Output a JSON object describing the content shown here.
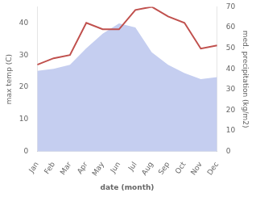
{
  "chart_data": {
    "type": "line",
    "categories": [
      "Jan",
      "Feb",
      "Mar",
      "Apr",
      "May",
      "Jun",
      "Jul",
      "Aug",
      "Sep",
      "Oct",
      "Nov",
      "Dec"
    ],
    "xlabel": "date (month)",
    "ylabel": "max temp (C)",
    "y2label": "med. precipitation (kg/m2)",
    "series": [
      {
        "type": "line",
        "color": "#c0504d",
        "values": [
          27,
          29,
          30,
          40,
          38,
          38,
          44,
          45,
          42,
          40,
          32,
          33
        ]
      },
      {
        "type": "area",
        "color": "#c5cef0",
        "axis": "y2",
        "values": [
          39,
          40,
          42,
          50,
          57,
          62,
          60,
          48,
          42,
          38,
          35,
          36
        ]
      }
    ],
    "ylim": [
      0,
      45
    ],
    "yticks": [
      0,
      10,
      20,
      30,
      40
    ],
    "y2lim": [
      0,
      70
    ],
    "y2ticks": [
      0,
      10,
      20,
      30,
      40,
      50,
      60,
      70
    ],
    "grid": false
  }
}
